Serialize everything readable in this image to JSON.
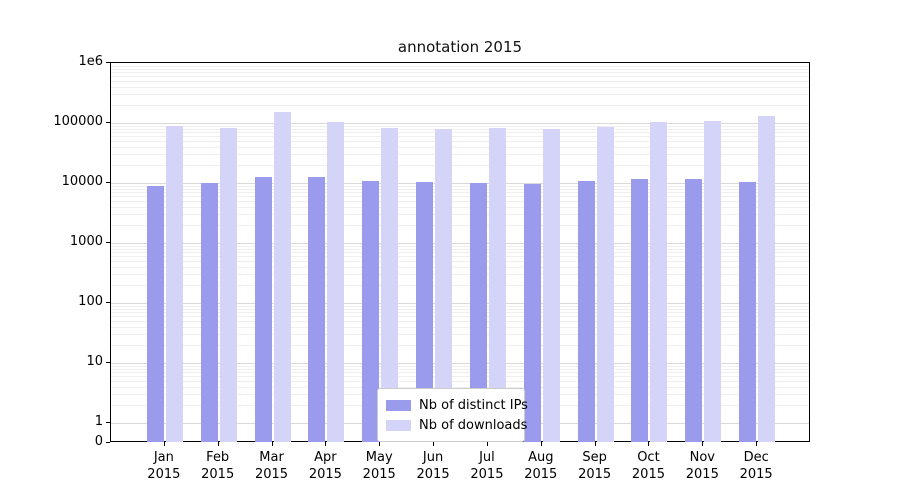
{
  "chart_data": {
    "type": "bar",
    "title": "annotation 2015",
    "categories": [
      "Jan",
      "Feb",
      "Mar",
      "Apr",
      "May",
      "Jun",
      "Jul",
      "Aug",
      "Sep",
      "Oct",
      "Nov",
      "Dec"
    ],
    "year": "2015",
    "series": [
      {
        "name": "Nb of distinct IPs",
        "color": "#9b9bee",
        "values": [
          8800,
          9900,
          12500,
          12400,
          11000,
          10300,
          10000,
          9500,
          10600,
          11500,
          11600,
          10200
        ]
      },
      {
        "name": "Nb of downloads",
        "color": "#d4d4f8",
        "values": [
          88000,
          84000,
          150000,
          103000,
          83000,
          78000,
          84000,
          80000,
          87000,
          104000,
          107000,
          129000
        ]
      }
    ],
    "yscale": "symlog",
    "ylim": [
      0,
      1000000
    ],
    "yticks": [
      {
        "label": "1e6",
        "value": 1000000
      },
      {
        "label": "100000",
        "value": 100000
      },
      {
        "label": "10000",
        "value": 10000
      },
      {
        "label": "1000",
        "value": 1000
      },
      {
        "label": "100",
        "value": 100
      },
      {
        "label": "10",
        "value": 10
      },
      {
        "label": "1",
        "value": 1
      },
      {
        "label": "0",
        "value": 0
      }
    ],
    "legend_position": "lower center",
    "grid": true
  }
}
